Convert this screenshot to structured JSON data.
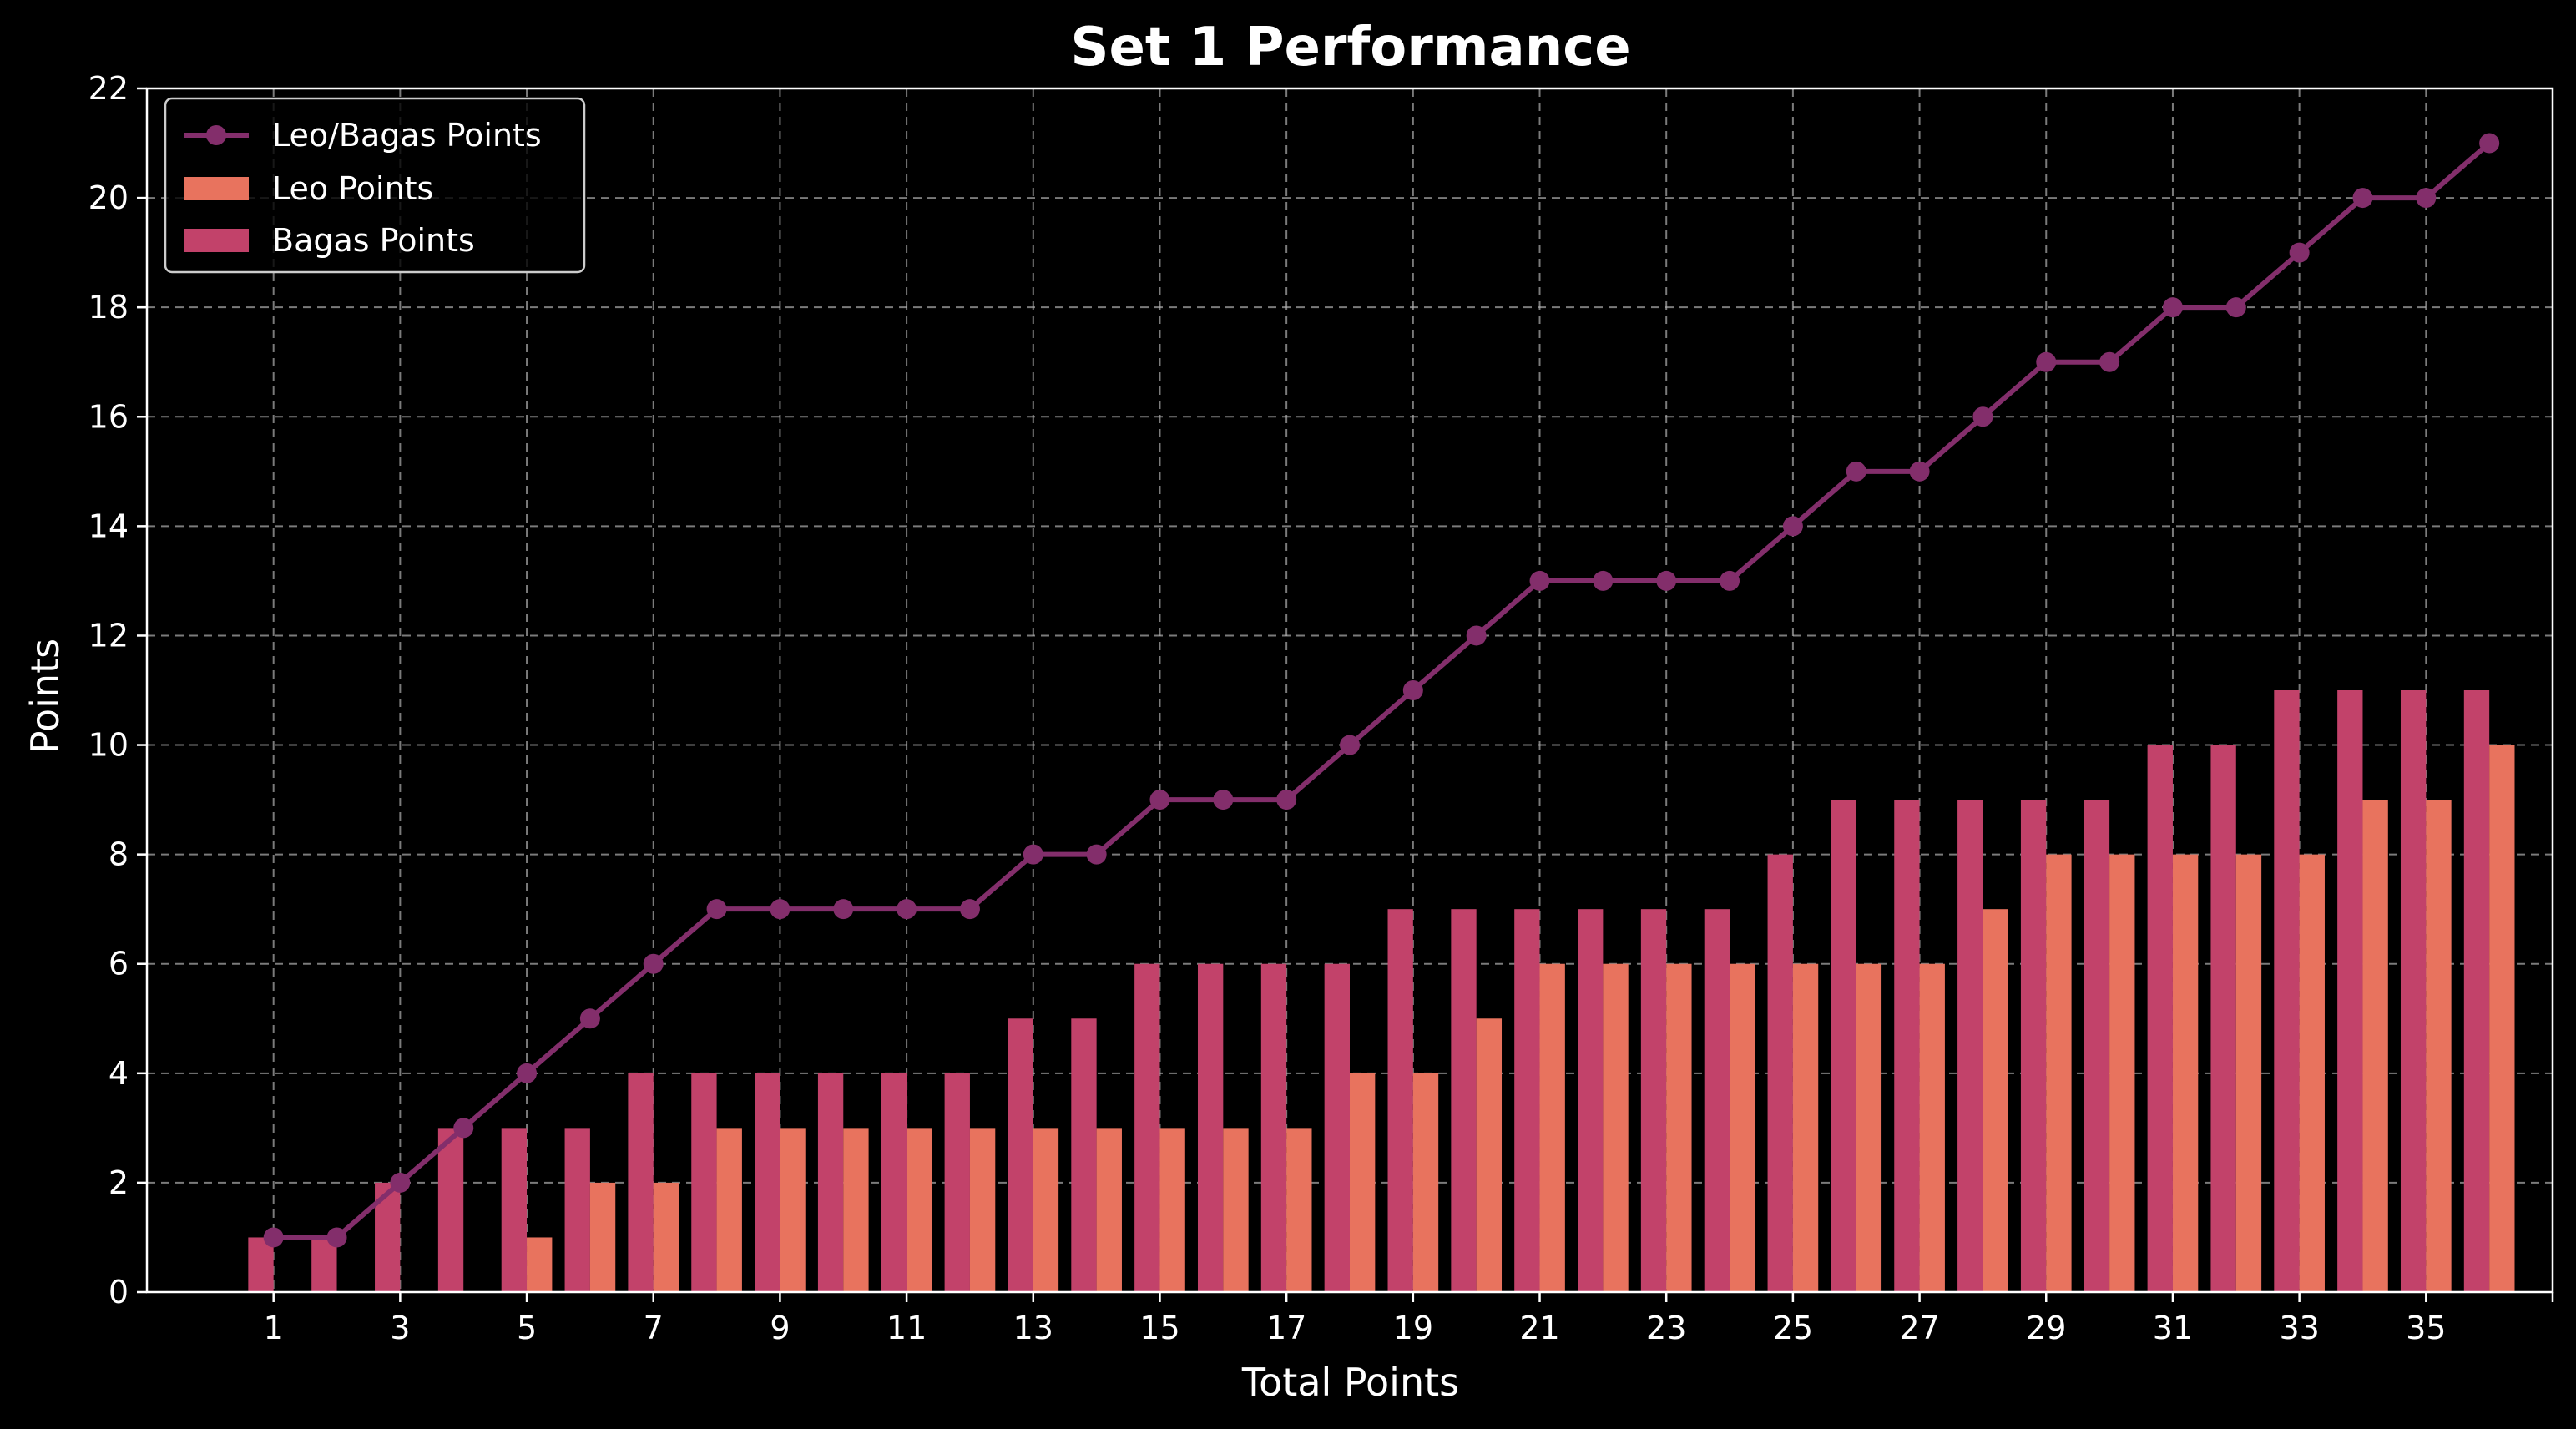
{
  "chart_data": {
    "type": "bar",
    "title": "Set 1 Performance",
    "xlabel": "Total Points",
    "ylabel": "Points",
    "x": [
      1,
      2,
      3,
      4,
      5,
      6,
      7,
      8,
      9,
      10,
      11,
      12,
      13,
      14,
      15,
      16,
      17,
      18,
      19,
      20,
      21,
      22,
      23,
      24,
      25,
      26,
      27,
      28,
      29,
      30,
      31,
      32,
      33,
      34,
      35,
      36
    ],
    "xticks": [
      1,
      3,
      5,
      7,
      9,
      11,
      13,
      15,
      17,
      19,
      21,
      23,
      25,
      27,
      29,
      31,
      33,
      35
    ],
    "xlim": [
      -1,
      37
    ],
    "yticks": [
      0,
      2,
      4,
      6,
      8,
      10,
      12,
      14,
      16,
      18,
      20,
      22
    ],
    "ylim": [
      0,
      22
    ],
    "grid": true,
    "legend_position": "top-left",
    "series": [
      {
        "name": "Leo/Bagas Points",
        "type": "line",
        "color": "#832e6b",
        "values": [
          1,
          1,
          2,
          3,
          4,
          5,
          6,
          7,
          7,
          7,
          7,
          7,
          8,
          8,
          9,
          9,
          9,
          10,
          11,
          12,
          13,
          13,
          13,
          13,
          14,
          15,
          15,
          16,
          17,
          17,
          18,
          18,
          19,
          20,
          20,
          21
        ]
      },
      {
        "name": "Leo Points",
        "type": "bar",
        "color": "#e8735e",
        "values": [
          0,
          0,
          0,
          0,
          1,
          2,
          2,
          3,
          3,
          3,
          3,
          3,
          3,
          3,
          3,
          3,
          3,
          4,
          4,
          5,
          6,
          6,
          6,
          6,
          6,
          6,
          6,
          7,
          8,
          8,
          8,
          8,
          8,
          9,
          9,
          10
        ]
      },
      {
        "name": "Bagas Points",
        "type": "bar",
        "color": "#c2426a",
        "values": [
          1,
          1,
          2,
          3,
          3,
          3,
          4,
          4,
          4,
          4,
          4,
          4,
          5,
          5,
          6,
          6,
          6,
          6,
          7,
          7,
          7,
          7,
          7,
          7,
          8,
          9,
          9,
          9,
          9,
          9,
          10,
          10,
          11,
          11,
          11,
          11
        ]
      }
    ]
  }
}
